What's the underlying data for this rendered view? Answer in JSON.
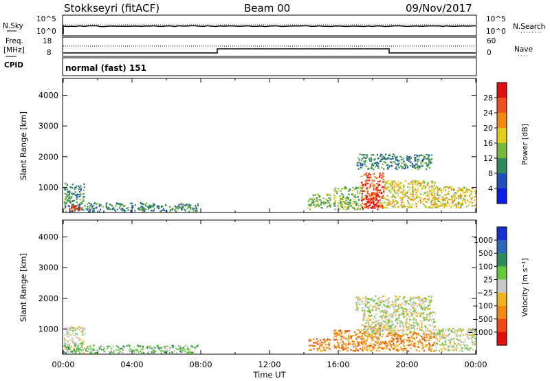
{
  "header": {
    "title": "Stokkseyri (fitACF)",
    "beam": "Beam 00",
    "date": "09/Nov/2017"
  },
  "panels": {
    "nsky": {
      "label": "N.Sky",
      "left_ticks": [
        "10^5",
        "10^0"
      ],
      "right_ticks": [
        "10^5",
        "10^0"
      ],
      "right_label": "N.Search"
    },
    "freq": {
      "label_line1": "Freq.",
      "label_line2": "[MHz]",
      "cpid_label": "CPID",
      "left_ticks": [
        "18",
        "8"
      ],
      "right_ticks": [
        "60",
        "0"
      ],
      "right_label": "Nave",
      "cpid_text": "normal (fast) 151"
    }
  },
  "chart_data": [
    {
      "type": "heatmap",
      "name": "power",
      "ylabel": "Slant Range [km]",
      "yticks": [
        1000,
        2000,
        3000,
        4000
      ],
      "ylim": [
        180,
        4550
      ],
      "xlim_hours": [
        0,
        24
      ],
      "colorbar_label": "Power [dB]",
      "colorbar_ticks": [
        "4",
        "8",
        "12",
        "16",
        "20",
        "24",
        "28"
      ],
      "colors": [
        "#0a1ee8",
        "#1f4fb8",
        "#2e8a58",
        "#7ab840",
        "#e0cf1c",
        "#f08a14",
        "#f0501e",
        "#e01010"
      ],
      "regions": [
        {
          "t": [
            0.0,
            1.2
          ],
          "r": [
            230,
            1150
          ],
          "level": 2
        },
        {
          "t": [
            0.3,
            1.1
          ],
          "r": [
            230,
            450
          ],
          "level": 7
        },
        {
          "t": [
            1.2,
            7.8
          ],
          "r": [
            230,
            520
          ],
          "level": 2
        },
        {
          "t": [
            14.2,
            15.5
          ],
          "r": [
            300,
            800
          ],
          "level": 3
        },
        {
          "t": [
            15.7,
            17.4
          ],
          "r": [
            300,
            1050
          ],
          "level": 3
        },
        {
          "t": [
            17.3,
            18.6
          ],
          "r": [
            300,
            1500
          ],
          "level": 6
        },
        {
          "t": [
            17.5,
            18.3
          ],
          "r": [
            350,
            800
          ],
          "level": 7
        },
        {
          "t": [
            18.6,
            21.6
          ],
          "r": [
            350,
            1250
          ],
          "level": 4
        },
        {
          "t": [
            17.0,
            21.4
          ],
          "r": [
            1600,
            2100
          ],
          "level": 2
        },
        {
          "t": [
            21.6,
            24.0
          ],
          "r": [
            350,
            1050
          ],
          "level": 4
        }
      ]
    },
    {
      "type": "heatmap",
      "name": "velocity",
      "ylabel": "Slant Range [km]",
      "yticks": [
        1000,
        2000,
        3000,
        4000
      ],
      "ylim": [
        180,
        4550
      ],
      "xlim_hours": [
        0,
        24
      ],
      "xticks": [
        "00:00",
        "04:00",
        "08:00",
        "12:00",
        "16:00",
        "20:00",
        "00:00"
      ],
      "xlabel": "Time UT",
      "colorbar_label": "Velocity [m s⁻¹]",
      "colorbar_ticks": [
        "1000",
        "500",
        "100",
        "25",
        "−25",
        "−100",
        "−500",
        "−1000"
      ],
      "colors": [
        "#1a2fd0",
        "#2f68b8",
        "#2e8a58",
        "#66c83c",
        "#c8c8c8",
        "#f0b41e",
        "#f08a14",
        "#f04a18",
        "#e01010"
      ],
      "regions": [
        {
          "t": [
            0.0,
            1.2
          ],
          "r": [
            230,
            1100
          ],
          "level": 4
        },
        {
          "t": [
            0.0,
            1.0
          ],
          "r": [
            230,
            500
          ],
          "level": 3
        },
        {
          "t": [
            1.2,
            7.8
          ],
          "r": [
            230,
            500
          ],
          "level": 3
        },
        {
          "t": [
            14.2,
            15.5
          ],
          "r": [
            300,
            700
          ],
          "level": 6
        },
        {
          "t": [
            15.7,
            17.4
          ],
          "r": [
            300,
            1000
          ],
          "level": 6
        },
        {
          "t": [
            17.3,
            18.6
          ],
          "r": [
            300,
            1200
          ],
          "level": 6
        },
        {
          "t": [
            17.4,
            21.6
          ],
          "r": [
            800,
            1600
          ],
          "level": 4
        },
        {
          "t": [
            18.6,
            21.6
          ],
          "r": [
            300,
            900
          ],
          "level": 6
        },
        {
          "t": [
            17.0,
            21.4
          ],
          "r": [
            1600,
            2100
          ],
          "level": 4
        },
        {
          "t": [
            21.6,
            24.0
          ],
          "r": [
            300,
            1050
          ],
          "level": 4
        }
      ]
    }
  ]
}
